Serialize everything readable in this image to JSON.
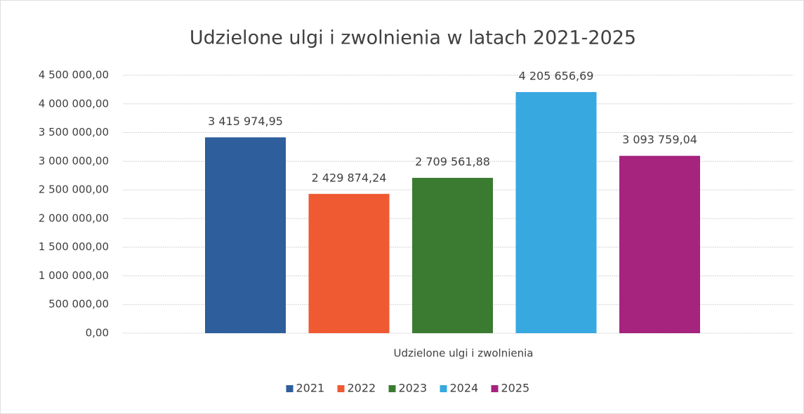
{
  "chart_data": {
    "type": "bar",
    "title": "Udzielone ulgi i zwolnienia w latach 2021-2025",
    "categories": [
      "Udzielone ulgi i zwolnienia"
    ],
    "x_label": "Udzielone ulgi i zwolnienia",
    "series": [
      {
        "name": "2021",
        "color": "#2e5e9c",
        "values": [
          3415974.95
        ],
        "value_labels": [
          "3 415 974,95"
        ]
      },
      {
        "name": "2022",
        "color": "#ef5a32",
        "values": [
          2429874.24
        ],
        "value_labels": [
          "2 429 874,24"
        ]
      },
      {
        "name": "2023",
        "color": "#3b7b31",
        "values": [
          2709561.88
        ],
        "value_labels": [
          "2 709 561,88"
        ]
      },
      {
        "name": "2024",
        "color": "#38a8e0",
        "values": [
          4205656.69
        ],
        "value_labels": [
          "4 205 656,69"
        ]
      },
      {
        "name": "2025",
        "color": "#a6237e",
        "values": [
          3093759.04
        ],
        "value_labels": [
          "3 093 759,04"
        ]
      }
    ],
    "ylim": [
      0,
      4500000
    ],
    "yticks": [
      {
        "value": 0,
        "label": "0,00"
      },
      {
        "value": 500000,
        "label": "500 000,00"
      },
      {
        "value": 1000000,
        "label": "1 000 000,00"
      },
      {
        "value": 1500000,
        "label": "1 500 000,00"
      },
      {
        "value": 2000000,
        "label": "2 000 000,00"
      },
      {
        "value": 2500000,
        "label": "2 500 000,00"
      },
      {
        "value": 3000000,
        "label": "3 000 000,00"
      },
      {
        "value": 3500000,
        "label": "3 500 000,00"
      },
      {
        "value": 4000000,
        "label": "4 000 000,00"
      },
      {
        "value": 4500000,
        "label": "4 500 000,00"
      }
    ],
    "grid": true,
    "legend": "bottom"
  }
}
